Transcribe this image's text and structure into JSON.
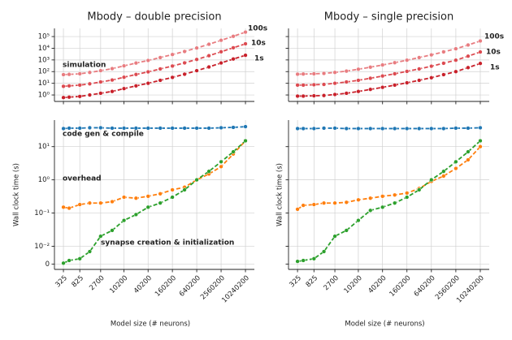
{
  "chart_data": [
    {
      "type": "line",
      "title": "Mbody – double precision",
      "yscale": "log",
      "grid": true,
      "annotation": "simulation",
      "annotation_color": "#d62728",
      "x": [
        325,
        450,
        825,
        1450,
        2700,
        5200,
        10200,
        20200,
        40200,
        80200,
        160200,
        320200,
        640200,
        1280200,
        2560200,
        5120200,
        10240200
      ],
      "xlim": [
        195,
        17000000
      ],
      "xticks": [
        325,
        825,
        2700,
        10200,
        40200,
        160200,
        640200,
        2560200,
        10240200
      ],
      "show_xtick_labels": false,
      "ylim": [
        0.28,
        500000
      ],
      "yticks": [
        {
          "value": 1,
          "label": "10⁰"
        },
        {
          "value": 10,
          "label": "10¹"
        },
        {
          "value": 100,
          "label": "10²"
        },
        {
          "value": 1000,
          "label": "10³"
        },
        {
          "value": 10000,
          "label": "10⁴"
        },
        {
          "value": 100000,
          "label": "10⁵"
        }
      ],
      "series": [
        {
          "name": "100s",
          "color": "#e87c80",
          "values": [
            55,
            58,
            65,
            85,
            120,
            180,
            310,
            540,
            900,
            1600,
            2900,
            5300,
            10500,
            22000,
            48000,
            105000,
            240000
          ]
        },
        {
          "name": "10s",
          "color": "#dc4a50",
          "values": [
            5.5,
            6,
            7,
            9,
            13,
            19,
            33,
            57,
            95,
            170,
            300,
            560,
            1100,
            2300,
            5000,
            11000,
            24000
          ]
        },
        {
          "name": "1s",
          "color": "#c8202a",
          "values": [
            0.6,
            0.65,
            0.75,
            1,
            1.4,
            2,
            3.5,
            6,
            10,
            18,
            32,
            60,
            120,
            250,
            550,
            1200,
            2500
          ]
        }
      ]
    },
    {
      "type": "line",
      "title": "Mbody – single precision",
      "yscale": "log",
      "grid": true,
      "show_ytick_labels": false,
      "x": [
        325,
        450,
        825,
        1450,
        2700,
        5200,
        10200,
        20200,
        40200,
        80200,
        160200,
        320200,
        640200,
        1280200,
        2560200,
        5120200,
        10240200
      ],
      "xlim": [
        195,
        17000000
      ],
      "xticks": [
        325,
        825,
        2700,
        10200,
        40200,
        160200,
        640200,
        2560200,
        10240200
      ],
      "show_xtick_labels": false,
      "ylim": [
        0.28,
        500000
      ],
      "yticks": [
        {
          "value": 1,
          "label": "10⁰"
        },
        {
          "value": 10,
          "label": "10¹"
        },
        {
          "value": 100,
          "label": "10²"
        },
        {
          "value": 1000,
          "label": "10³"
        },
        {
          "value": 10000,
          "label": "10⁴"
        },
        {
          "value": 100000,
          "label": "10⁵"
        }
      ],
      "series": [
        {
          "name": "100s",
          "color": "#e87c80",
          "values": [
            60,
            62,
            65,
            70,
            85,
            110,
            160,
            240,
            370,
            580,
            950,
            1600,
            2700,
            4900,
            9000,
            19000,
            42000
          ]
        },
        {
          "name": "10s",
          "color": "#dc4a50",
          "values": [
            7,
            7,
            7.5,
            8,
            10,
            13,
            18,
            27,
            42,
            65,
            105,
            170,
            290,
            520,
            950,
            2100,
            4800
          ]
        },
        {
          "name": "1s",
          "color": "#c8202a",
          "values": [
            0.8,
            0.8,
            0.85,
            0.9,
            1.1,
            1.4,
            2,
            3,
            4.5,
            7,
            11,
            18,
            30,
            55,
            100,
            220,
            500
          ]
        }
      ]
    },
    {
      "type": "line",
      "yscale": "symlog",
      "linthresh": 0.01,
      "grid": true,
      "xlabel": "Model size (# neurons)",
      "ylabel": "Wall clock time (s)",
      "x": [
        325,
        450,
        825,
        1450,
        2700,
        5200,
        10200,
        20200,
        40200,
        80200,
        160200,
        320200,
        640200,
        1280200,
        2560200,
        5120200,
        10240200
      ],
      "xlim": [
        195,
        17000000
      ],
      "xticks": [
        325,
        825,
        2700,
        10200,
        40200,
        160200,
        640200,
        2560200,
        10240200
      ],
      "ylim": [
        -0.003,
        63
      ],
      "yticks": [
        0,
        {
          "value": 0.01,
          "label": "10⁻²"
        },
        {
          "value": 0.1,
          "label": "10⁻¹"
        },
        {
          "value": 1,
          "label": "10⁰"
        },
        {
          "value": 10,
          "label": "10¹"
        }
      ],
      "series": [
        {
          "name": "code gen & compile",
          "color": "#1f77b4",
          "values": [
            35,
            36,
            36,
            37,
            37,
            36,
            36,
            36,
            36,
            36,
            36,
            36,
            36,
            36,
            37,
            38,
            40
          ]
        },
        {
          "name": "overhead",
          "color": "#ff7f0e",
          "values": [
            0.15,
            0.14,
            0.18,
            0.2,
            0.2,
            0.22,
            0.3,
            0.28,
            0.32,
            0.38,
            0.5,
            0.6,
            1,
            1.5,
            2.5,
            6,
            15
          ]
        },
        {
          "name": "synapse creation & initialization",
          "color": "#2ca02c",
          "values": [
            0.0005,
            0.002,
            0.003,
            0.007,
            0.02,
            0.03,
            0.06,
            0.09,
            0.15,
            0.2,
            0.3,
            0.5,
            1,
            1.8,
            3.5,
            7,
            15
          ]
        }
      ]
    },
    {
      "type": "line",
      "yscale": "symlog",
      "linthresh": 0.01,
      "grid": true,
      "show_ytick_labels": false,
      "xlabel": "Model size (# neurons)",
      "ylabel": "Wall clock time (s)",
      "x": [
        325,
        450,
        825,
        1450,
        2700,
        5200,
        10200,
        20200,
        40200,
        80200,
        160200,
        320200,
        640200,
        1280200,
        2560200,
        5120200,
        10240200
      ],
      "xlim": [
        195,
        17000000
      ],
      "xticks": [
        325,
        825,
        2700,
        10200,
        40200,
        160200,
        640200,
        2560200,
        10240200
      ],
      "ylim": [
        -0.003,
        63
      ],
      "yticks": [
        0,
        {
          "value": 0.01,
          "label": "10⁻²"
        },
        {
          "value": 0.1,
          "label": "10⁻¹"
        },
        {
          "value": 1,
          "label": "10⁰"
        },
        {
          "value": 10,
          "label": "10¹"
        }
      ],
      "series": [
        {
          "color": "#1f77b4",
          "values": [
            35,
            35,
            35,
            36,
            36,
            35,
            35,
            35,
            35,
            35,
            35,
            35,
            35,
            35,
            36,
            36,
            37
          ]
        },
        {
          "color": "#ff7f0e",
          "values": [
            0.13,
            0.17,
            0.18,
            0.2,
            0.2,
            0.21,
            0.25,
            0.28,
            0.32,
            0.35,
            0.4,
            0.55,
            0.9,
            1.3,
            2.2,
            4,
            10
          ]
        },
        {
          "color": "#2ca02c",
          "values": [
            0.0015,
            0.002,
            0.003,
            0.007,
            0.02,
            0.03,
            0.06,
            0.12,
            0.15,
            0.2,
            0.3,
            0.5,
            1,
            1.8,
            3.5,
            7,
            15
          ]
        }
      ]
    }
  ]
}
